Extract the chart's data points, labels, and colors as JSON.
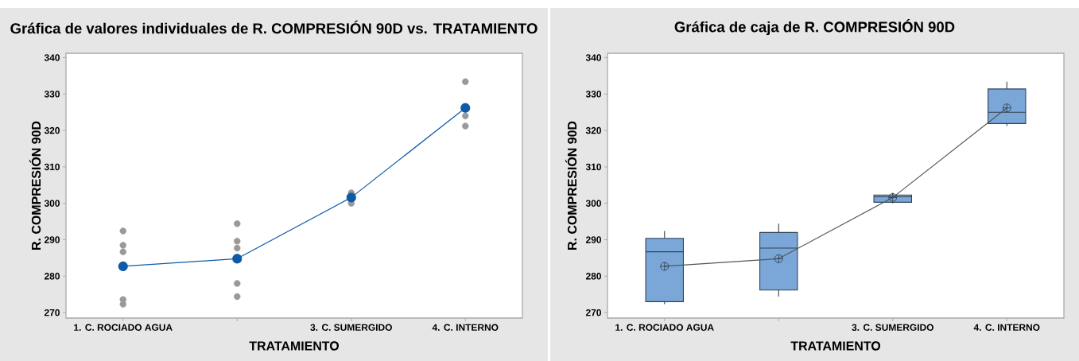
{
  "chart_data": [
    {
      "type": "scatter",
      "title": "Gráfica de valores individuales de R. COMPRESIÓN 90D vs. TRATAMIENTO",
      "xlabel": "TRATAMIENTO",
      "ylabel": "R. COMPRESIÓN 90D",
      "categories": [
        "1. C. ROCIADO AGUA",
        null,
        "3. C. SUMERGIDO",
        "4. C. INTERNO"
      ],
      "ylim": [
        268.5,
        341.2
      ],
      "yticks": [
        270,
        280,
        290,
        300,
        310,
        320,
        330,
        340
      ],
      "marker": "circle",
      "series": [
        {
          "color": "#999999",
          "values": [
            292.4,
            294.4,
            302.9,
            333.4
          ]
        },
        {
          "color": "#999999",
          "values": [
            288.5,
            289.6,
            300.0,
            324.0
          ]
        },
        {
          "color": "#999999",
          "values": [
            286.7,
            287.7,
            null,
            321.2
          ]
        },
        {
          "color": "#999999",
          "values": [
            273.6,
            278.0,
            null,
            null
          ]
        },
        {
          "color": "#999999",
          "values": [
            272.3,
            274.4,
            null,
            null
          ]
        },
        {
          "type": "line",
          "color": "#0e5aa7",
          "values": [
            282.7,
            284.8,
            301.6,
            326.2
          ]
        }
      ]
    },
    {
      "type": "box",
      "title": "Gráfica de caja de R. COMPRESIÓN 90D",
      "xlabel": "TRATAMIENTO",
      "ylabel": "R. COMPRESIÓN 90D",
      "categories": [
        "1. C. ROCIADO AGUA",
        null,
        "3. C. SUMERGIDO",
        "4. C. INTERNO"
      ],
      "ylim": [
        268.5,
        341.2
      ],
      "yticks": [
        270,
        280,
        290,
        300,
        310,
        320,
        330,
        340
      ],
      "series": [
        {
          "type": "box",
          "color": "#7ba7d8",
          "boxes": [
            {
              "low": 272.3,
              "q1": 273.0,
              "median": 286.7,
              "q3": 290.4,
              "high": 292.4,
              "mean": 282.7
            },
            {
              "low": 274.4,
              "q1": 276.2,
              "median": 287.7,
              "q3": 292.0,
              "high": 294.4,
              "mean": 284.8
            },
            {
              "low": 300.0,
              "q1": 300.3,
              "median": 301.8,
              "q3": 302.3,
              "high": 302.9,
              "mean": 301.6
            },
            {
              "low": 321.2,
              "q1": 321.9,
              "median": 325.0,
              "q3": 331.4,
              "high": 333.4,
              "mean": 326.2
            }
          ]
        },
        {
          "type": "line",
          "color": "#555555",
          "values": [
            282.7,
            284.8,
            301.6,
            326.2
          ]
        }
      ]
    }
  ]
}
